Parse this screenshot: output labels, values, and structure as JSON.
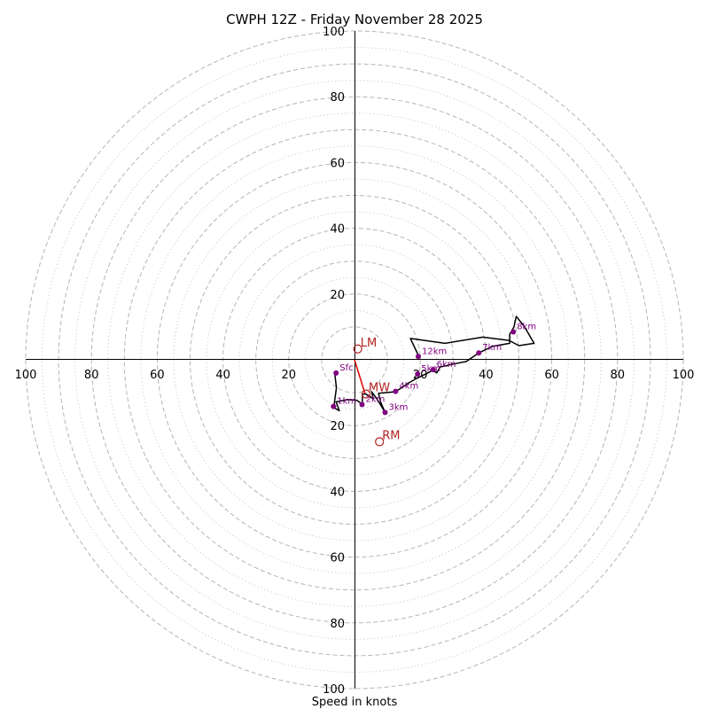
{
  "chart_data": {
    "type": "hodograph",
    "title": "CWPH 12Z - Friday November 28 2025",
    "xlabel": "Speed in knots",
    "units": "knots",
    "range": [
      -100,
      100
    ],
    "rings": {
      "major": [
        10,
        30,
        50,
        70,
        90,
        20,
        40,
        60,
        80,
        100
      ],
      "dotted": [
        5,
        15,
        25,
        35,
        45,
        55,
        65,
        75,
        85,
        95
      ]
    },
    "tick_labels": {
      "x_left": [
        "100",
        "80",
        "60",
        "40",
        "20"
      ],
      "x_right": [
        "20",
        "40",
        "60",
        "80",
        "100"
      ],
      "y_up": [
        "20",
        "40",
        "60",
        "80",
        "100"
      ],
      "y_down": [
        "20",
        "40",
        "60",
        "80",
        "100"
      ]
    },
    "trace": [
      {
        "u": -6.0,
        "v": -4.1
      },
      {
        "u": -5.5,
        "v": -8.5
      },
      {
        "u": -6.3,
        "v": -14.5
      },
      {
        "u": -4.6,
        "v": -15.5
      },
      {
        "u": -5.6,
        "v": -12.8
      },
      {
        "u": -2.2,
        "v": -12.1
      },
      {
        "u": 0.7,
        "v": -12.3
      },
      {
        "u": 2.4,
        "v": -13.5
      },
      {
        "u": 2.4,
        "v": -10.4
      },
      {
        "u": 3.5,
        "v": -10.4
      },
      {
        "u": 5.7,
        "v": -11.8
      },
      {
        "u": 5.2,
        "v": -9.7
      },
      {
        "u": 6.6,
        "v": -11.6
      },
      {
        "u": 8.0,
        "v": -13.8
      },
      {
        "u": 9.3,
        "v": -16.0
      },
      {
        "u": 8.0,
        "v": -13.0
      },
      {
        "u": 7.3,
        "v": -10.2
      },
      {
        "u": 12.5,
        "v": -9.7
      },
      {
        "u": 16.5,
        "v": -7.0
      },
      {
        "u": 19.2,
        "v": -5.5
      },
      {
        "u": 21.5,
        "v": -4.4
      },
      {
        "u": 23.8,
        "v": -3.2
      },
      {
        "u": 25.0,
        "v": -4.0
      },
      {
        "u": 26.0,
        "v": -2.2
      },
      {
        "u": 30.0,
        "v": -1.3
      },
      {
        "u": 34.0,
        "v": -0.5
      },
      {
        "u": 37.8,
        "v": 2.1
      },
      {
        "u": 42.0,
        "v": 4.1
      },
      {
        "u": 47.2,
        "v": 5.0
      },
      {
        "u": 47.2,
        "v": 7.7
      },
      {
        "u": 48.5,
        "v": 10.0
      },
      {
        "u": 49.2,
        "v": 13.2
      },
      {
        "u": 51.2,
        "v": 10.7
      },
      {
        "u": 52.2,
        "v": 9.2
      },
      {
        "u": 54.6,
        "v": 5.0
      },
      {
        "u": 50.0,
        "v": 4.3
      },
      {
        "u": 47.0,
        "v": 5.9
      },
      {
        "u": 39.0,
        "v": 6.9
      },
      {
        "u": 27.5,
        "v": 5.0
      },
      {
        "u": 17.0,
        "v": 6.5
      },
      {
        "u": 19.5,
        "v": 1.2
      }
    ],
    "heights": [
      {
        "label": "Sfc",
        "u": -5.6,
        "v": -4.0
      },
      {
        "label": "1km",
        "u": -6.4,
        "v": -14.2
      },
      {
        "label": "2km",
        "u": 2.3,
        "v": -13.6
      },
      {
        "label": "3km",
        "u": 9.3,
        "v": -16.0
      },
      {
        "label": "4km",
        "u": 12.5,
        "v": -9.6
      },
      {
        "label": "5km",
        "u": 19.2,
        "v": -4.3
      },
      {
        "label": "6km",
        "u": 23.9,
        "v": -3.0
      },
      {
        "label": "7km",
        "u": 37.8,
        "v": 2.1
      },
      {
        "label": "8km",
        "u": 48.3,
        "v": 8.5
      },
      {
        "label": "12km",
        "u": 19.4,
        "v": 1.0
      }
    ],
    "storm_motion": [
      {
        "label": "LM",
        "u": 1.0,
        "v": 3.3,
        "marker": "open-circle"
      },
      {
        "label": "MW",
        "u": 3.5,
        "v": -10.4,
        "marker": "open-circle"
      },
      {
        "label": "RM",
        "u": 7.6,
        "v": -24.9,
        "marker": "open-circle"
      }
    ],
    "shear_vector": {
      "from": {
        "u": 0,
        "v": 0
      },
      "to": {
        "u": 3.2,
        "v": -10.2
      }
    }
  },
  "colors": {
    "trace": "#000000",
    "height_points": "#800080",
    "storm_motion": "#b22222",
    "shear_vector": "#e00000",
    "rings": "#b5b5b5"
  }
}
